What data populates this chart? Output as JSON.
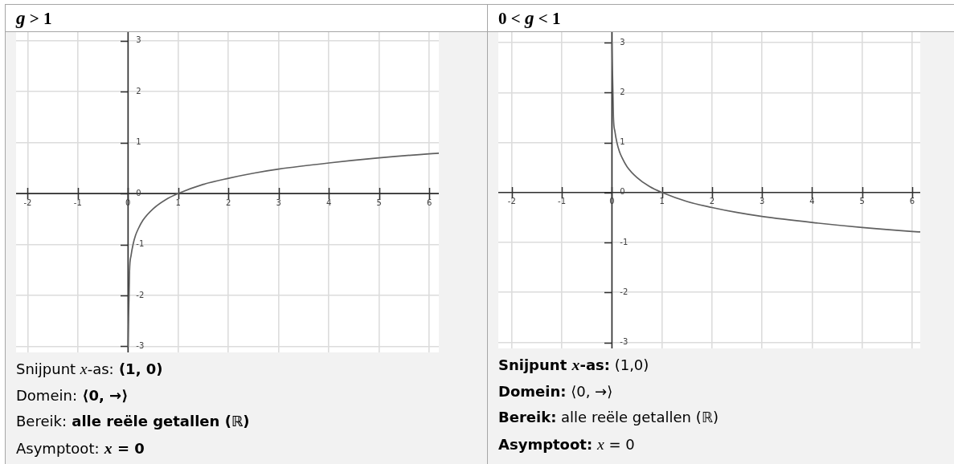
{
  "chart_data": [
    {
      "type": "line",
      "title": "g > 1",
      "x": [
        0.001,
        0.03,
        0.06,
        0.1,
        0.15,
        0.2,
        0.3,
        0.5,
        0.75,
        1,
        1.5,
        2,
        2.5,
        3,
        4,
        5,
        6,
        6.19
      ],
      "values": [
        -3,
        -1.52,
        -1.22,
        -1,
        -0.82,
        -0.7,
        -0.52,
        -0.3,
        -0.12,
        0,
        0.18,
        0.3,
        0.4,
        0.48,
        0.6,
        0.7,
        0.78,
        0.79
      ],
      "color": "#606060",
      "marker": "none",
      "line_style": "solid",
      "grid": true,
      "xlim": [
        -2.23,
        6.19
      ],
      "ylim": [
        -3.12,
        3.17
      ],
      "xticks": [
        -2,
        -1,
        0,
        1,
        2,
        3,
        4,
        5,
        6
      ],
      "yticks": [
        -3,
        -2,
        -1,
        0,
        1,
        2,
        3
      ],
      "annotations": [
        "Snijpunt x-as: (1, 0)",
        "Domein: ⟨0, →⟩",
        "Bereik: alle reële getallen (ℝ)",
        "Asymptoot: x = 0"
      ]
    },
    {
      "type": "line",
      "title": "0 < g < 1",
      "x": [
        0.001,
        0.03,
        0.06,
        0.1,
        0.15,
        0.2,
        0.3,
        0.5,
        0.75,
        1,
        1.5,
        2,
        2.5,
        3,
        4,
        5,
        6,
        6.16
      ],
      "values": [
        3,
        1.52,
        1.22,
        1,
        0.82,
        0.7,
        0.52,
        0.3,
        0.12,
        0,
        -0.18,
        -0.3,
        -0.4,
        -0.48,
        -0.6,
        -0.7,
        -0.78,
        -0.79
      ],
      "color": "#606060",
      "marker": "none",
      "line_style": "solid",
      "grid": true,
      "xlim": [
        -2.27,
        6.16
      ],
      "ylim": [
        -3.12,
        3.21
      ],
      "xticks": [
        -2,
        -1,
        0,
        1,
        2,
        3,
        4,
        5,
        6
      ],
      "yticks": [
        -3,
        -2,
        -1,
        0,
        1,
        2,
        3
      ],
      "annotations": [
        "Snijpunt x-as: (1,0)",
        "Domein: ⟨0, →⟩",
        "Bereik: alle reële getallen (ℝ)",
        "Asymptoot: x = 0"
      ]
    }
  ]
}
